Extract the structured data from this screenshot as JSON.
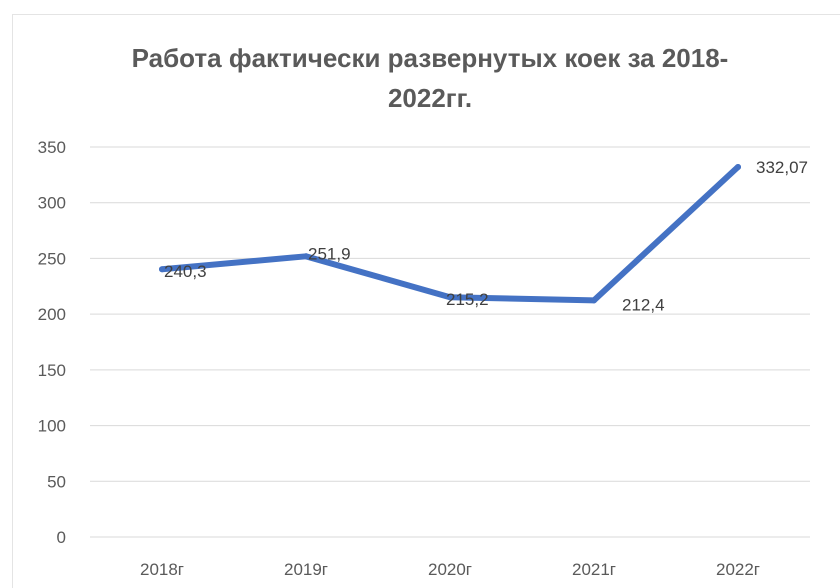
{
  "chart_data": {
    "type": "line",
    "title": "Работа фактически развернутых коек за 2018-2022гг.",
    "title_lines": [
      "Работа фактически развернутых коек за 2018-",
      "2022гг."
    ],
    "categories": [
      "2018г",
      "2019г",
      "2020г",
      "2021г",
      "2022г"
    ],
    "series": [
      {
        "values": [
          240.3,
          251.9,
          215.2,
          212.4,
          332.07
        ]
      }
    ],
    "data_labels": [
      "240,3",
      "251,9",
      "215,2",
      "212,4",
      "332,07"
    ],
    "y_ticks": [
      "0",
      "50",
      "100",
      "150",
      "200",
      "250",
      "300",
      "350"
    ],
    "ylim": [
      0,
      350
    ],
    "xlabel": "",
    "ylabel": "",
    "grid": true,
    "legend": "none",
    "colors": {
      "line": "#4472c4",
      "grid": "#d9d9d9",
      "text": "#595959"
    }
  }
}
